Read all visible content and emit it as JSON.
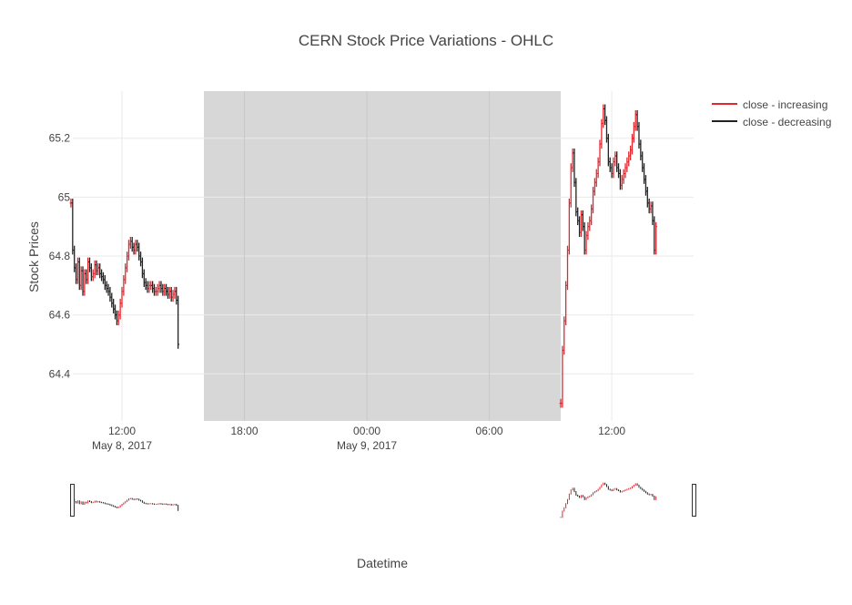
{
  "chart_data": {
    "type": "ohlc",
    "title": "CERN Stock Price Variations - OHLC",
    "xlabel": "Datetime",
    "ylabel": "Stock Prices",
    "ylim": [
      64.24,
      65.36
    ],
    "yticks": [
      "64.4",
      "64.6",
      "64.8",
      "65",
      "65.2"
    ],
    "xticks": [
      {
        "label": "12:00",
        "sublabel": "May 8, 2017"
      },
      {
        "label": "18:00",
        "sublabel": ""
      },
      {
        "label": "00:00",
        "sublabel": "May 9, 2017"
      },
      {
        "label": "06:00",
        "sublabel": ""
      },
      {
        "label": "12:00",
        "sublabel": ""
      }
    ],
    "grid": true,
    "legend_position": "top-right",
    "range_slider": true,
    "shaded_region": {
      "from": "May 8, 2017 16:00",
      "to": "May 9, 2017 09:30",
      "color": "#d7d7d7"
    },
    "series": [
      {
        "name": "close - increasing",
        "color": "#e3272e"
      },
      {
        "name": "close - decreasing",
        "color": "#222222"
      }
    ],
    "sessions": [
      {
        "date": "May 8, 2017",
        "start": "09:30",
        "interval_minutes": 5,
        "close": [
          64.98,
          64.82,
          64.76,
          64.72,
          64.78,
          64.7,
          64.75,
          64.68,
          64.74,
          64.72,
          64.78,
          64.76,
          64.73,
          64.74,
          64.77,
          64.75,
          64.76,
          64.74,
          64.73,
          64.72,
          64.7,
          64.69,
          64.68,
          64.66,
          64.64,
          64.62,
          64.6,
          64.58,
          64.6,
          64.64,
          64.68,
          64.72,
          64.76,
          64.8,
          64.84,
          64.85,
          64.83,
          64.82,
          64.84,
          64.83,
          64.8,
          64.78,
          64.74,
          64.71,
          64.7,
          64.69,
          64.7,
          64.7,
          64.69,
          64.68,
          64.68,
          64.69,
          64.7,
          64.69,
          64.68,
          64.69,
          64.68,
          64.67,
          64.68,
          64.66,
          64.67,
          64.68,
          64.65,
          64.5
        ]
      },
      {
        "date": "May 9, 2017",
        "start": "09:30",
        "interval_minutes": 5,
        "close": [
          64.3,
          64.48,
          64.58,
          64.7,
          64.82,
          64.98,
          65.1,
          65.15,
          65.05,
          64.95,
          64.92,
          64.88,
          64.94,
          64.9,
          64.82,
          64.87,
          64.9,
          64.92,
          64.96,
          65.02,
          65.05,
          65.08,
          65.12,
          65.18,
          65.25,
          65.3,
          65.26,
          65.2,
          65.12,
          65.1,
          65.08,
          65.12,
          65.14,
          65.1,
          65.08,
          65.04,
          65.06,
          65.08,
          65.1,
          65.12,
          65.14,
          65.16,
          65.2,
          65.24,
          65.28,
          65.24,
          65.18,
          65.14,
          65.1,
          65.06,
          65.02,
          64.98,
          64.96,
          64.97,
          64.92,
          64.82,
          64.9
        ]
      }
    ]
  }
}
